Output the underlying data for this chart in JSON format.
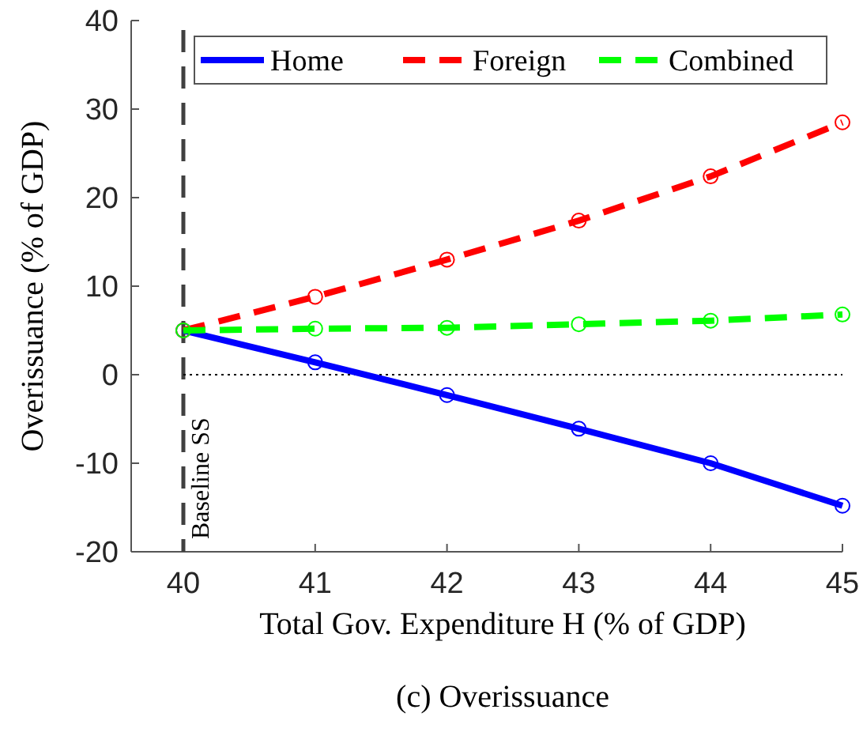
{
  "chart_data": {
    "type": "line",
    "xlabel": "Total Gov. Expenditure H (% of GDP)",
    "ylabel": "Overissuance (% of GDP)",
    "x": [
      40,
      41,
      42,
      43,
      44,
      45
    ],
    "series": [
      {
        "name": "Home",
        "color": "#0000ff",
        "line_style": "solid",
        "values": [
          5,
          1.4,
          -2.3,
          -6.1,
          -10,
          -14.8
        ]
      },
      {
        "name": "Foreign",
        "color": "#ff0000",
        "line_style": "dashed",
        "values": [
          5,
          8.8,
          13,
          17.4,
          22.4,
          28.5
        ]
      },
      {
        "name": "Combined",
        "color": "#00ff00",
        "line_style": "dashed",
        "values": [
          5,
          5.2,
          5.3,
          5.7,
          6.1,
          6.8
        ]
      }
    ],
    "xlim": [
      40,
      45
    ],
    "xticks": [
      40,
      41,
      42,
      43,
      44,
      45
    ],
    "ylim": [
      -20,
      40
    ],
    "yticks": [
      -20,
      -10,
      0,
      10,
      20,
      30,
      40
    ],
    "ref_lines": [
      {
        "axis": "x",
        "value": 40,
        "label": "Baseline SS",
        "color": "#404040",
        "line_style": "dashed"
      },
      {
        "axis": "y",
        "value": 0,
        "label": null,
        "color": "#000000",
        "line_style": "dotted"
      }
    ],
    "annotations": [
      "(c) Overissuance"
    ],
    "marker": "circle",
    "legend": "top right",
    "grid": false
  }
}
